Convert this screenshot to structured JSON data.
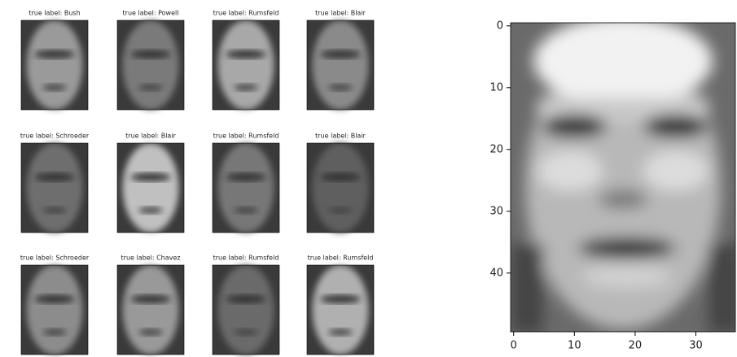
{
  "chart_data": [
    {
      "type": "image-grid",
      "titles": [
        "true label:  Bush",
        "true label:  Powell",
        "true label:  Rumsfeld",
        "true label:  Blair",
        "true label:  Schroeder",
        "true label:  Blair",
        "true label:  Rumsfeld",
        "true label:  Blair",
        "true label:  Schroeder",
        "true label:  Chavez",
        "true label:  Rumsfeld",
        "true label:  Rumsfeld"
      ],
      "columns": 4
    },
    {
      "type": "image",
      "xlim": [
        -0.5,
        36.5
      ],
      "ylim": [
        49.5,
        -0.5
      ],
      "xticks": [
        0,
        10,
        20,
        30
      ],
      "yticks": [
        0,
        10,
        20,
        30,
        40
      ]
    }
  ]
}
